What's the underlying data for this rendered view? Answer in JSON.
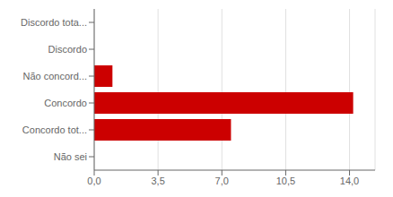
{
  "chart_data": {
    "type": "bar",
    "orientation": "horizontal",
    "categories": [
      "Discordo tota...",
      "Discordo",
      "Não concord...",
      "Concordo",
      "Concordo tot...",
      "Não sei"
    ],
    "values": [
      0,
      0,
      1.0,
      14.2,
      7.5,
      0
    ],
    "color": "#cc0000",
    "xlim": [
      0,
      15.4
    ],
    "xticks": [
      {
        "value": 0.0,
        "label": "0,0"
      },
      {
        "value": 3.5,
        "label": "3,5"
      },
      {
        "value": 7.0,
        "label": "7,0"
      },
      {
        "value": 10.5,
        "label": "10,5"
      },
      {
        "value": 14.0,
        "label": "14,0"
      }
    ],
    "grid": true
  }
}
